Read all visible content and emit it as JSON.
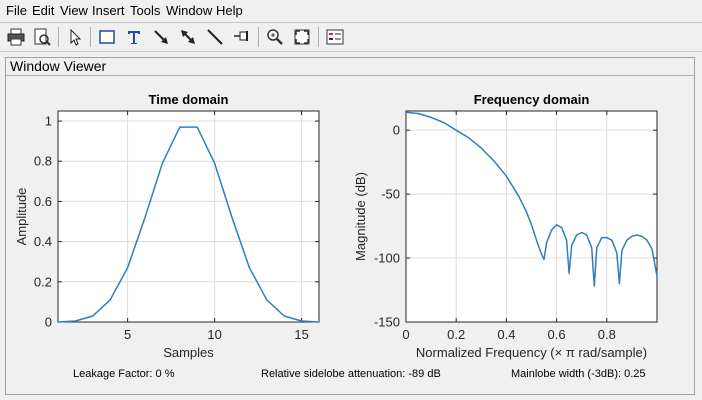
{
  "menu": {
    "items": [
      "File",
      "Edit",
      "View",
      "Insert",
      "Tools",
      "Window",
      "Help"
    ]
  },
  "toolbar": {
    "icons": [
      "print-icon",
      "print-preview-icon",
      "select-pointer-icon",
      "insert-rectangle-icon",
      "insert-text-icon",
      "insert-arrow-icon",
      "insert-double-arrow-icon",
      "insert-line-icon",
      "pin-icon",
      "zoom-in-icon",
      "fit-view-icon",
      "legend-icon"
    ]
  },
  "panel": {
    "title": "Window Viewer"
  },
  "colors": {
    "line": "#2f7dc3",
    "axes_bg": "#ffffff",
    "grid": "#dcdcdc"
  },
  "chart_data": [
    {
      "type": "line",
      "title": "Time domain",
      "xlabel": "Samples",
      "ylabel": "Amplitude",
      "xlim": [
        1,
        16
      ],
      "ylim": [
        0,
        1.05
      ],
      "xticks": [
        5,
        10,
        15
      ],
      "yticks": [
        0,
        0.2,
        0.4,
        0.6,
        0.8,
        1
      ],
      "ytick_labels": [
        "0",
        "0.2",
        "0.4",
        "0.6",
        "0.8",
        "1"
      ],
      "grid": true,
      "x": [
        1,
        2,
        3,
        4,
        5,
        6,
        7,
        8,
        9,
        10,
        11,
        12,
        13,
        14,
        15,
        16
      ],
      "y": [
        0.0,
        0.005,
        0.03,
        0.11,
        0.27,
        0.52,
        0.79,
        0.97,
        0.97,
        0.79,
        0.52,
        0.27,
        0.11,
        0.03,
        0.005,
        0.0
      ]
    },
    {
      "type": "line",
      "title": "Frequency domain",
      "xlabel": "Normalized Frequency  (× π rad/sample)",
      "ylabel": "Magnitude (dB)",
      "xlim": [
        0,
        1
      ],
      "ylim": [
        -150,
        15
      ],
      "xticks": [
        0,
        0.2,
        0.4,
        0.6,
        0.8
      ],
      "xtick_labels": [
        "0",
        "0.2",
        "0.4",
        "0.6",
        "0.8"
      ],
      "yticks": [
        0,
        -50,
        -100,
        -150
      ],
      "ytick_labels": [
        "0",
        "-50",
        "-100",
        "-150"
      ],
      "grid": true,
      "x": [
        0.0,
        0.05,
        0.1,
        0.15,
        0.2,
        0.25,
        0.3,
        0.35,
        0.4,
        0.45,
        0.48,
        0.5,
        0.52,
        0.54,
        0.55,
        0.56,
        0.58,
        0.6,
        0.62,
        0.64,
        0.65,
        0.66,
        0.68,
        0.7,
        0.72,
        0.74,
        0.75,
        0.76,
        0.78,
        0.8,
        0.82,
        0.84,
        0.85,
        0.86,
        0.88,
        0.9,
        0.92,
        0.94,
        0.96,
        0.98,
        1.0
      ],
      "y": [
        14,
        13,
        10,
        6,
        0,
        -6,
        -14,
        -24,
        -36,
        -52,
        -64,
        -74,
        -86,
        -97,
        -101,
        -88,
        -78,
        -74,
        -76,
        -86,
        -112,
        -90,
        -82,
        -80,
        -82,
        -92,
        -122,
        -92,
        -84,
        -84,
        -86,
        -96,
        -120,
        -94,
        -86,
        -83,
        -82,
        -83,
        -86,
        -93,
        -114
      ]
    }
  ],
  "footer": {
    "leakage": "Leakage Factor: 0 %",
    "sidelobe": "Relative sidelobe attenuation: -89 dB",
    "mainlobe": "Mainlobe width (-3dB): 0.25"
  }
}
